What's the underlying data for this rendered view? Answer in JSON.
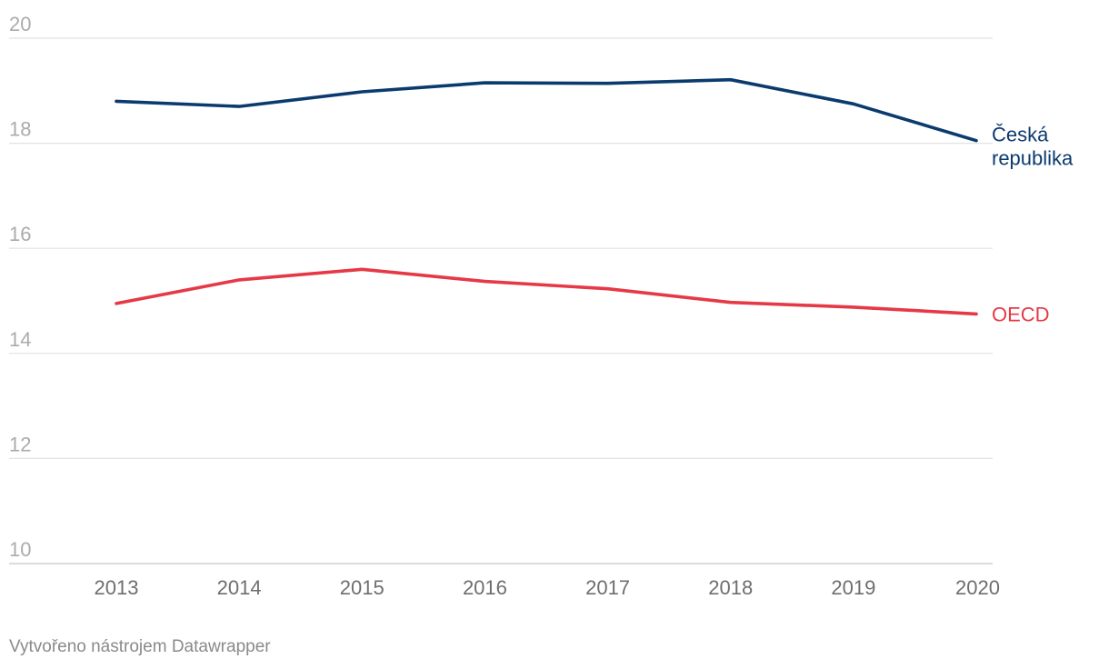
{
  "chart_data": {
    "type": "line",
    "x": [
      2013,
      2014,
      2015,
      2016,
      2017,
      2018,
      2019,
      2020
    ],
    "x_tick_labels": [
      "2013",
      "2014",
      "2015",
      "2016",
      "2017",
      "2018",
      "2019",
      "2020"
    ],
    "y_ticks": [
      10,
      12,
      14,
      16,
      18,
      20
    ],
    "y_tick_labels": [
      "10",
      "12",
      "14",
      "16",
      "18",
      "20"
    ],
    "ylim": [
      10,
      20
    ],
    "grid": true,
    "legend": "direct labels at right end of lines",
    "series": [
      {
        "name": "Česká republika",
        "label_lines": [
          "Česká",
          "republika"
        ],
        "color": "#0b3b6e",
        "values": [
          18.8,
          18.7,
          18.98,
          19.15,
          19.14,
          19.21,
          18.75,
          18.05
        ]
      },
      {
        "name": "OECD",
        "label_lines": [
          "OECD"
        ],
        "color": "#e63946",
        "values": [
          14.95,
          15.4,
          15.6,
          15.37,
          15.23,
          14.97,
          14.88,
          14.75
        ]
      }
    ]
  },
  "footer": {
    "text": "Vytvořeno nástrojem Datawrapper"
  }
}
